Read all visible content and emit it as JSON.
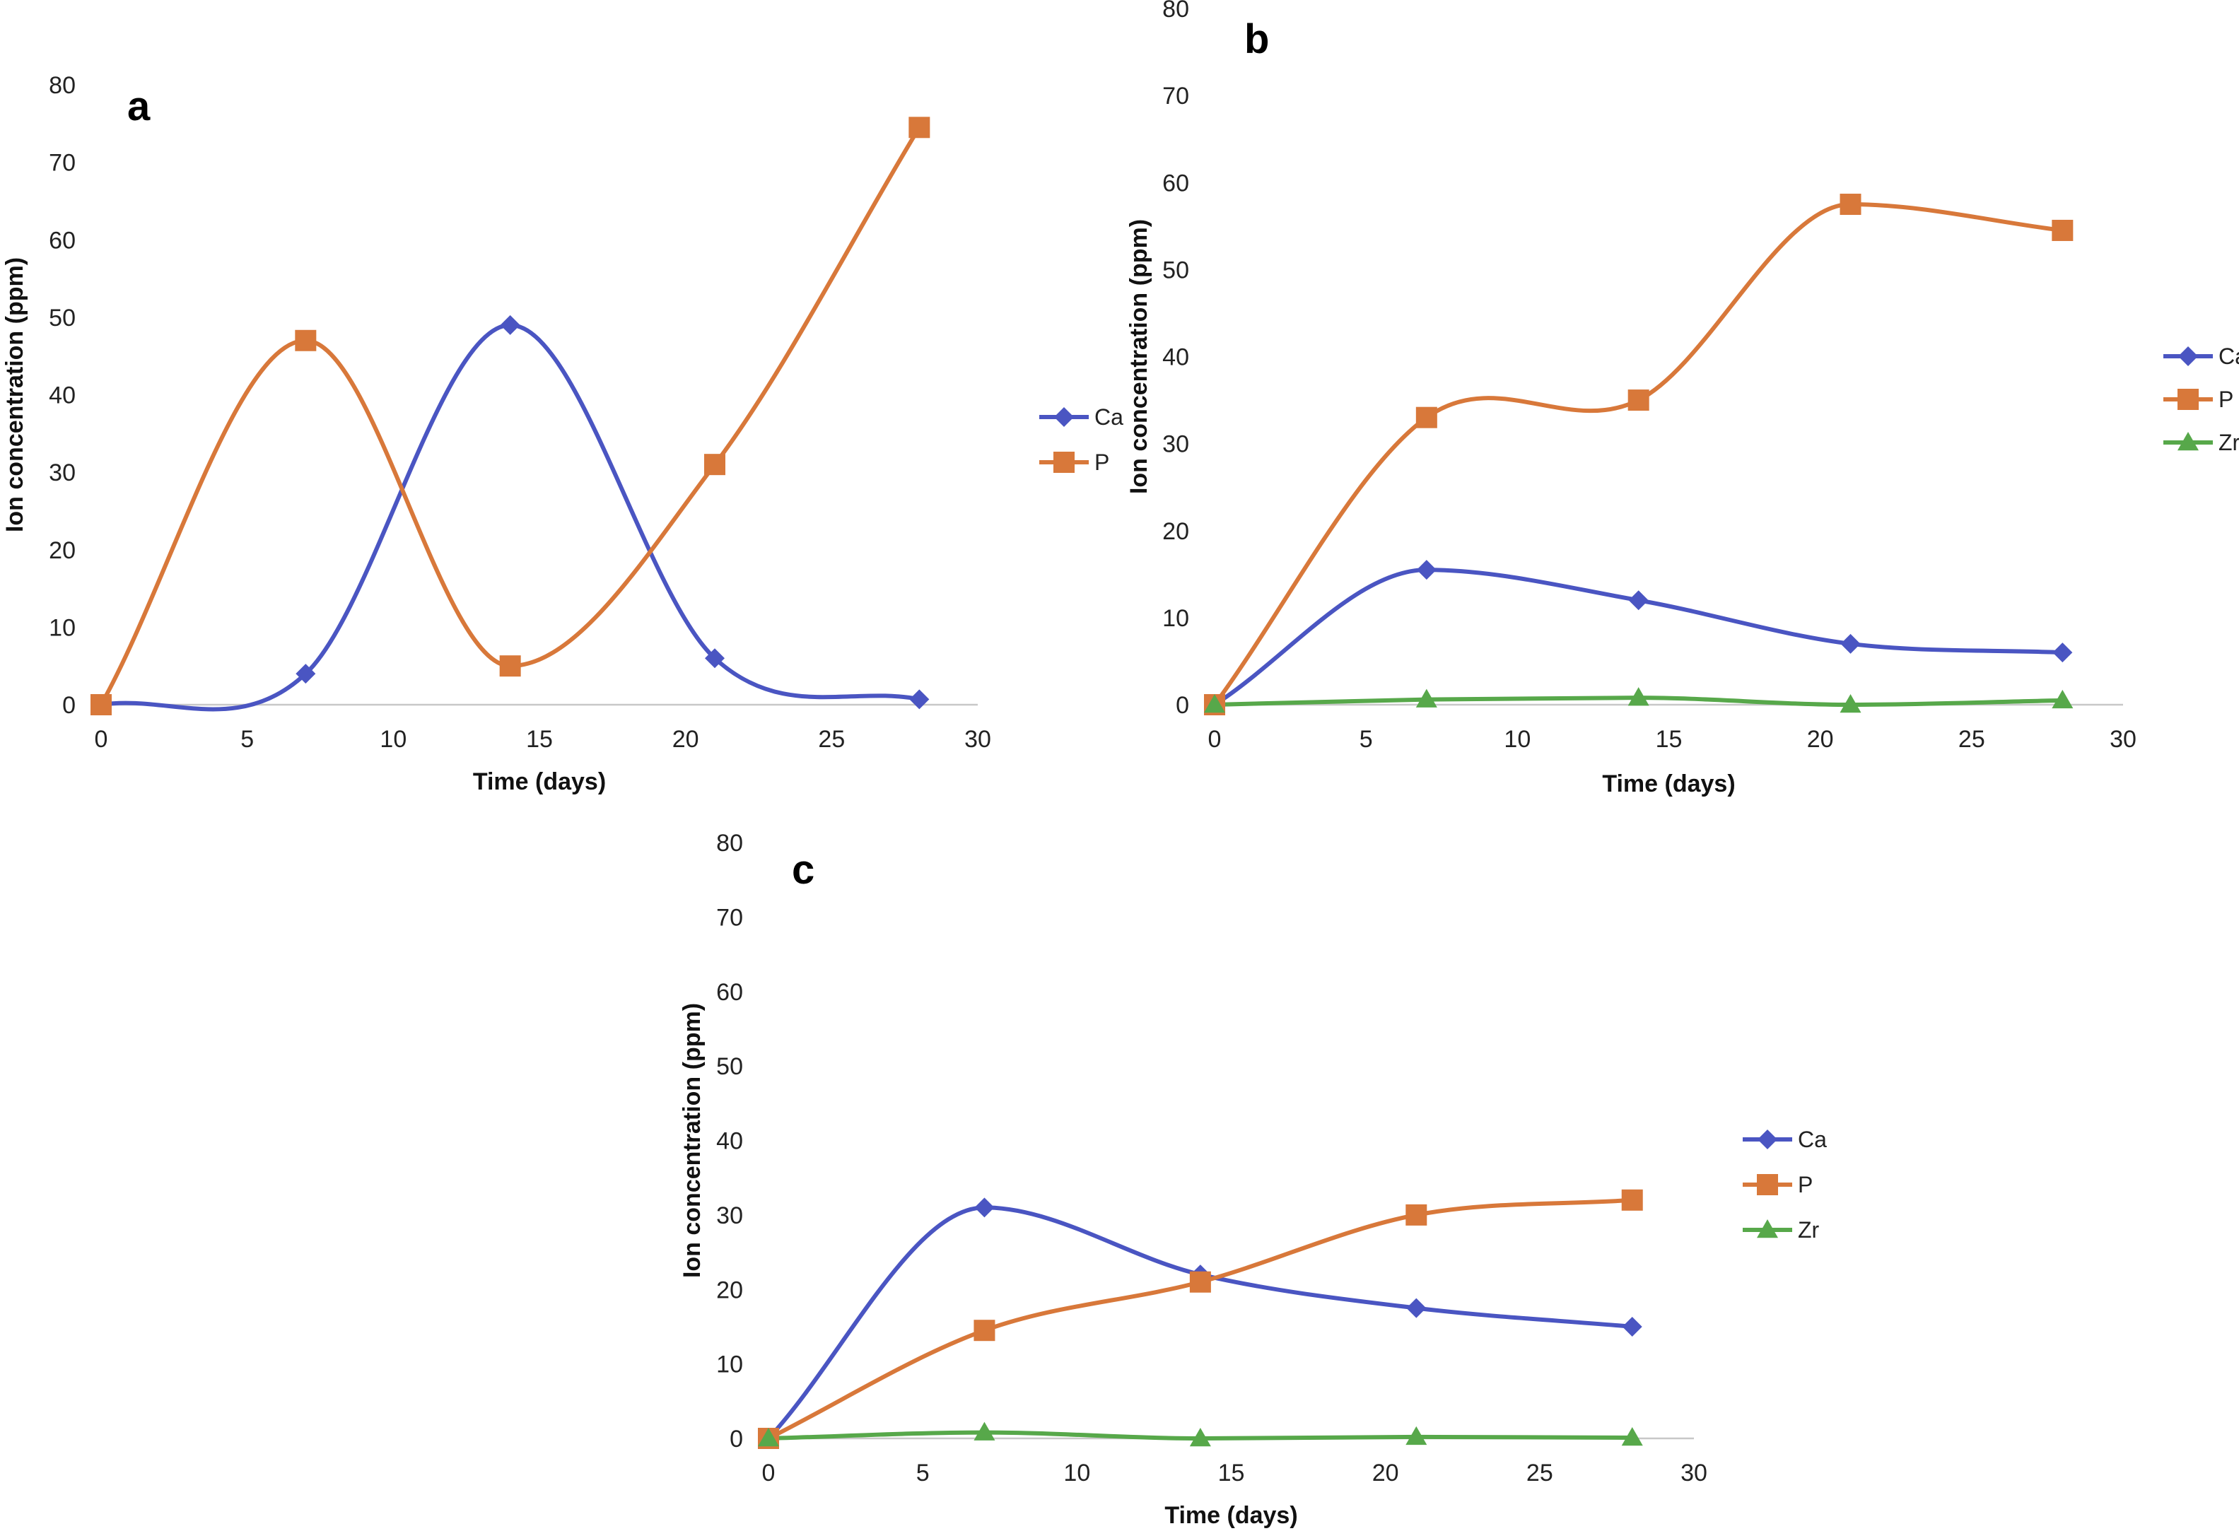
{
  "colors": {
    "Ca": "#4a55c2",
    "P": "#d8783a",
    "Zr": "#57a84a",
    "axis": "#c8c8c8"
  },
  "chart_data": [
    {
      "panel": "a",
      "type": "line",
      "smooth": true,
      "title": "",
      "xlabel": "Time (days)",
      "ylabel": "Ion concentration (ppm)",
      "xlim": [
        0,
        30
      ],
      "ylim": [
        0,
        80
      ],
      "x_ticks": [
        "0",
        "5",
        "10",
        "15",
        "20",
        "25",
        "30"
      ],
      "y_ticks": [
        "0",
        "10",
        "20",
        "30",
        "40",
        "50",
        "60",
        "70",
        "80"
      ],
      "legend_position": "right",
      "series": [
        {
          "name": "Ca",
          "marker": "diamond",
          "x": [
            0,
            7,
            14,
            21,
            28
          ],
          "y": [
            0,
            4,
            49,
            6,
            0.7
          ]
        },
        {
          "name": "P",
          "marker": "square",
          "x": [
            0,
            7,
            14,
            21,
            28
          ],
          "y": [
            0,
            47,
            5,
            31,
            74.5
          ]
        }
      ]
    },
    {
      "panel": "b",
      "type": "line",
      "smooth": true,
      "title": "",
      "xlabel": "Time (days)",
      "ylabel": "Ion concentration  (ppm)",
      "xlim": [
        0,
        30
      ],
      "ylim": [
        0,
        80
      ],
      "x_ticks": [
        "0",
        "5",
        "10",
        "15",
        "20",
        "25",
        "30"
      ],
      "y_ticks": [
        "0",
        "10",
        "20",
        "30",
        "40",
        "50",
        "60",
        "70",
        "80"
      ],
      "legend_position": "right",
      "series": [
        {
          "name": "Ca",
          "marker": "diamond",
          "x": [
            0,
            7,
            14,
            21,
            28
          ],
          "y": [
            0,
            15.5,
            12,
            7,
            6
          ]
        },
        {
          "name": "P",
          "marker": "square",
          "x": [
            0,
            7,
            14,
            21,
            28
          ],
          "y": [
            0,
            33,
            35,
            57.5,
            54.5
          ]
        },
        {
          "name": "Zr",
          "marker": "triangle",
          "x": [
            0,
            7,
            14,
            21,
            28
          ],
          "y": [
            0,
            0.6,
            0.8,
            0,
            0.5
          ]
        }
      ]
    },
    {
      "panel": "c",
      "type": "line",
      "smooth": true,
      "title": "",
      "xlabel": "Time (days)",
      "ylabel": "Ion concentration (ppm)",
      "xlim": [
        0,
        30
      ],
      "ylim": [
        0,
        80
      ],
      "x_ticks": [
        "0",
        "5",
        "10",
        "15",
        "20",
        "25",
        "30"
      ],
      "y_ticks": [
        "0",
        "10",
        "20",
        "30",
        "40",
        "50",
        "60",
        "70",
        "80"
      ],
      "legend_position": "right",
      "series": [
        {
          "name": "Ca",
          "marker": "diamond",
          "x": [
            0,
            7,
            14,
            21,
            28
          ],
          "y": [
            0,
            31,
            22,
            17.5,
            15
          ]
        },
        {
          "name": "P",
          "marker": "square",
          "x": [
            0,
            7,
            14,
            21,
            28
          ],
          "y": [
            0,
            14.5,
            21,
            30,
            32
          ]
        },
        {
          "name": "Zr",
          "marker": "triangle",
          "x": [
            0,
            7,
            14,
            21,
            28
          ],
          "y": [
            0,
            0.8,
            0,
            0.2,
            0.1
          ]
        }
      ]
    }
  ]
}
